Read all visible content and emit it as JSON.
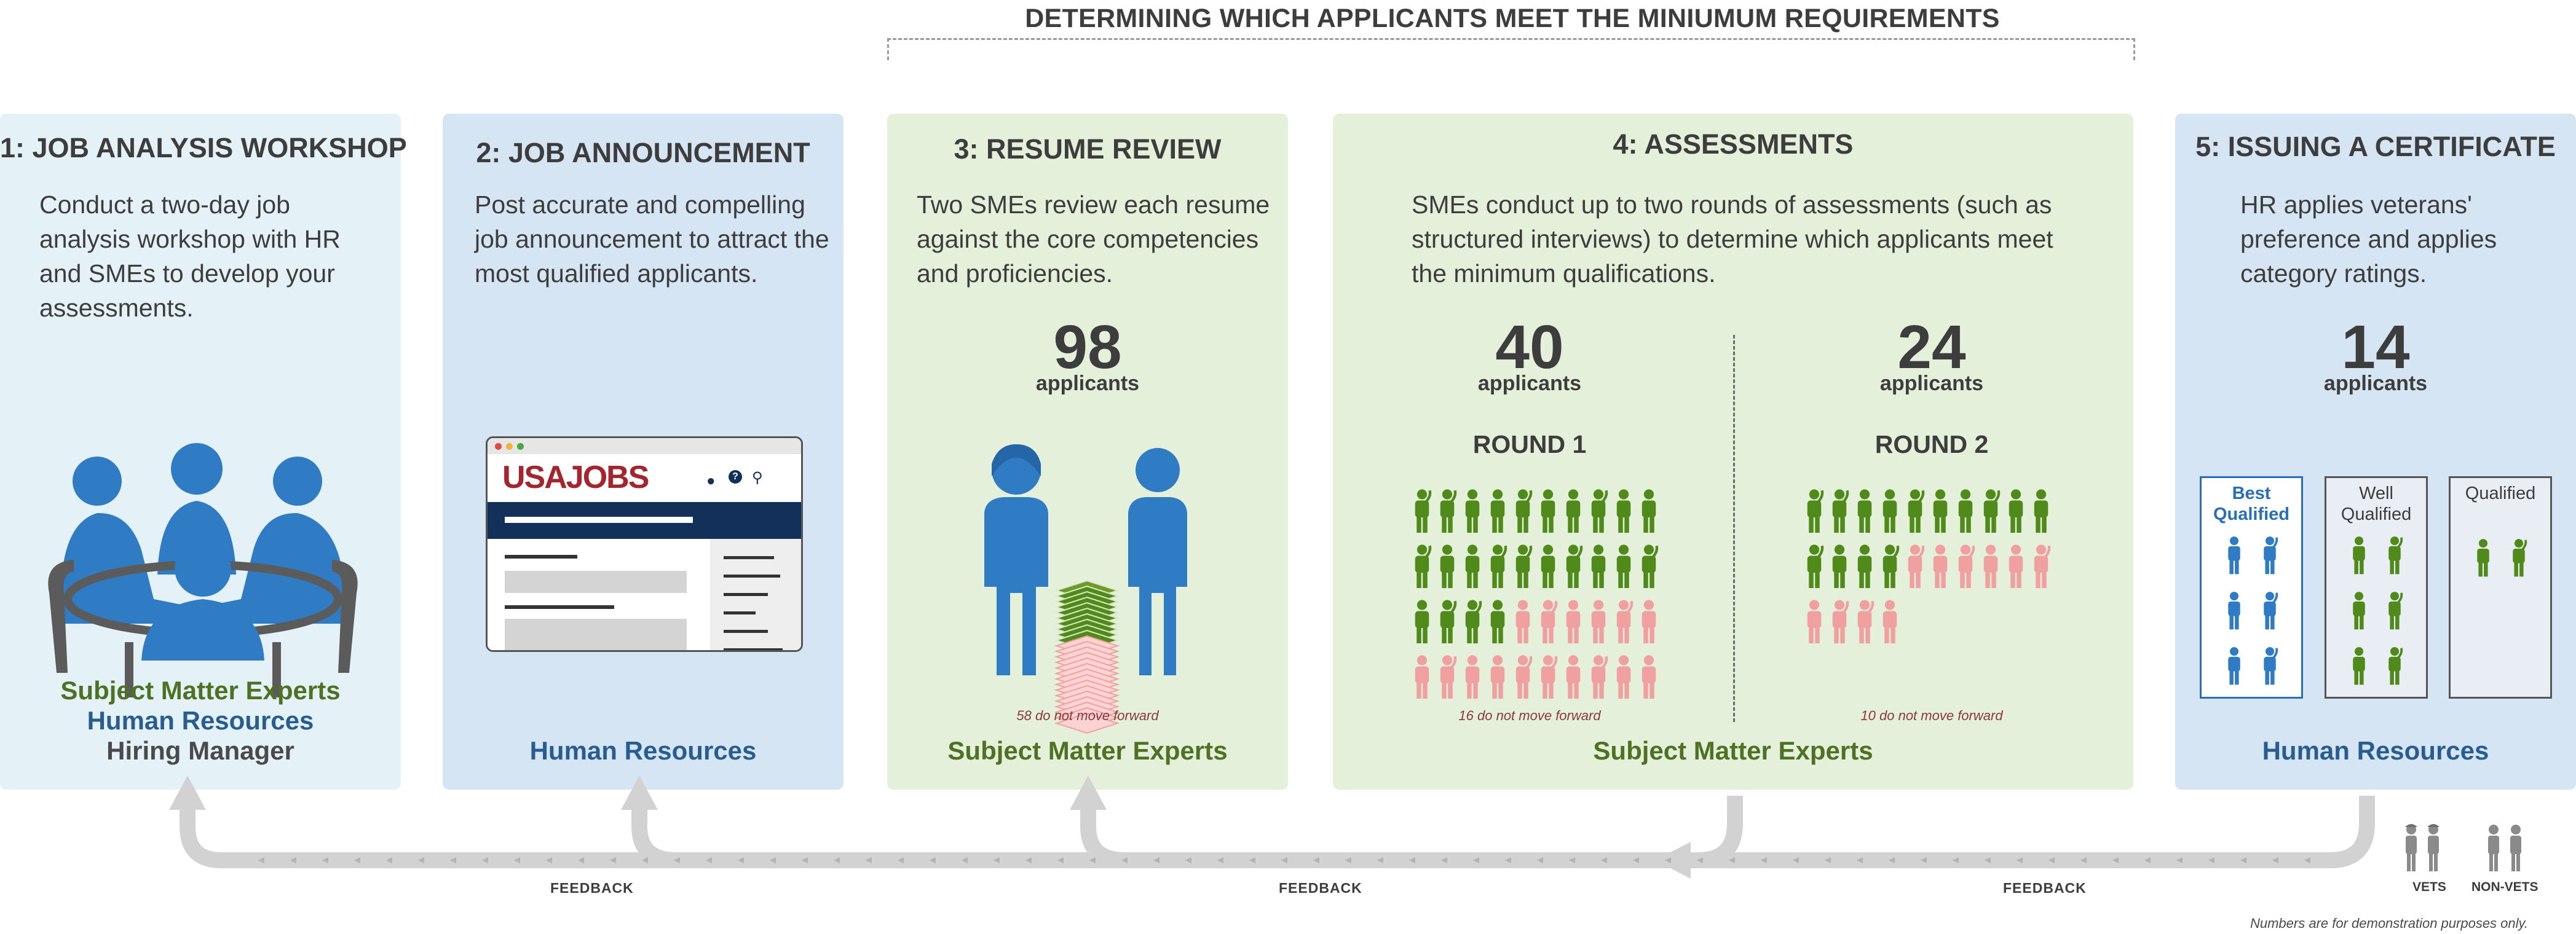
{
  "header": {
    "title": "DETERMINING WHICH APPLICANTS MEET THE MINIUMUM REQUIREMENTS"
  },
  "panels": {
    "job_analysis": {
      "title": "1: JOB ANALYSIS WORKSHOP",
      "description": "Conduct a two-day job analysis workshop with HR and SMEs to develop your assessments.",
      "roles": [
        "Subject Matter Experts",
        "Human Resources",
        "Hiring Manager"
      ]
    },
    "job_announcement": {
      "title": "2: JOB ANNOUNCEMENT",
      "description": "Post accurate and compelling job announcement to attract the most qualified applicants.",
      "logo_text": "USAJOBS",
      "role": "Human Resources"
    },
    "resume_review": {
      "title": "3: RESUME REVIEW",
      "description": "Two SMEs review each resume against the core competencies and proficiencies.",
      "count": "98",
      "count_label": "applicants",
      "note": "58 do not move forward",
      "role": "Subject Matter Experts"
    },
    "assessments": {
      "title": "4:  ASSESSMENTS",
      "description": "SMEs conduct up to two rounds of assessments (such as structured interviews) to determine which applicants meet the minimum qualifications.",
      "rounds": [
        {
          "label": "ROUND 1",
          "count": "40",
          "count_label": "applicants",
          "note": "16 do not move forward",
          "forward": 24,
          "eliminated": 16
        },
        {
          "label": "ROUND 2",
          "count": "24",
          "count_label": "applicants",
          "note": "10 do not move forward",
          "forward": 14,
          "eliminated": 10
        }
      ],
      "role": "Subject Matter Experts"
    },
    "certificate": {
      "title": "5: ISSUING A CERTIFICATE",
      "description": "HR applies veterans' preference and applies category ratings.",
      "count": "14",
      "count_label": "applicants",
      "categories": [
        {
          "label": "Best Qualified",
          "count": 6
        },
        {
          "label": "Well Qualified",
          "count": 6
        },
        {
          "label": "Qualified",
          "count": 2
        }
      ],
      "role": "Human Resources"
    }
  },
  "feedback": {
    "labels": [
      "FEEDBACK",
      "FEEDBACK",
      "FEEDBACK"
    ]
  },
  "legend": {
    "vets": "VETS",
    "non_vets": "NON-VETS"
  },
  "footnote": "Numbers are for demonstration purposes only.",
  "colors": {
    "light_blue_panel": "#e4f2f8",
    "blue_panel": "#d6e5f3",
    "green_panel": "#e4f0da",
    "person_blue": "#2f7bc4",
    "person_green": "#4f8a1b",
    "person_pink": "#f0a0a0",
    "usajobs_red": "#a3262e",
    "usajobs_navy": "#13305a"
  }
}
